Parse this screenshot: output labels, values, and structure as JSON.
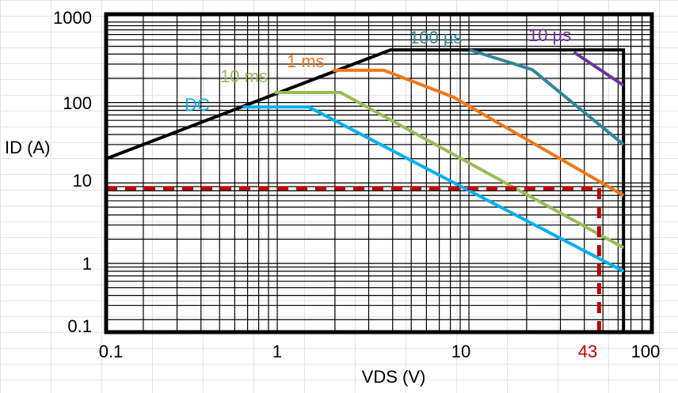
{
  "chart_data": {
    "type": "line",
    "xlabel": "VDS (V)",
    "ylabel": "ID (A)",
    "x_scale": "log",
    "y_scale": "log",
    "xlim": [
      0.128,
      90
    ],
    "ylim": [
      0.14,
      1250
    ],
    "grid": true,
    "x_ticks": [
      "0.1",
      "1",
      "10",
      "100"
    ],
    "y_ticks": [
      "1000",
      "100",
      "10",
      "1",
      "0.1"
    ],
    "boundary": {
      "color": "#000000",
      "points": [
        [
          0.128,
          20
        ],
        [
          3.9,
          450
        ],
        [
          64,
          450
        ],
        [
          64,
          0.14
        ]
      ]
    },
    "series": [
      {
        "name": "DC",
        "color": "#00b0f0",
        "points": [
          [
            0.66,
            88
          ],
          [
            1.46,
            88
          ],
          [
            64,
            0.8
          ]
        ]
      },
      {
        "name": "10 ms",
        "color": "#9bbb59",
        "points": [
          [
            0.97,
            133
          ],
          [
            2.14,
            133
          ],
          [
            64,
            1.57
          ]
        ]
      },
      {
        "name": "1 ms",
        "color": "#f07818",
        "points": [
          [
            1.95,
            251
          ],
          [
            3.6,
            251
          ],
          [
            8.35,
            116
          ],
          [
            64,
            7
          ]
        ]
      },
      {
        "name": "100 µs",
        "color": "#31849b",
        "points": [
          [
            10.1,
            450
          ],
          [
            21.4,
            256
          ],
          [
            64,
            30
          ]
        ]
      },
      {
        "name": "10 µs",
        "color": "#7030a0",
        "points": [
          [
            35.3,
            422
          ],
          [
            64,
            163
          ]
        ]
      }
    ],
    "annotations": {
      "operating_current": 8.6,
      "operating_voltage": 43,
      "operating_voltage_label": "43",
      "color": "#c00000"
    }
  }
}
